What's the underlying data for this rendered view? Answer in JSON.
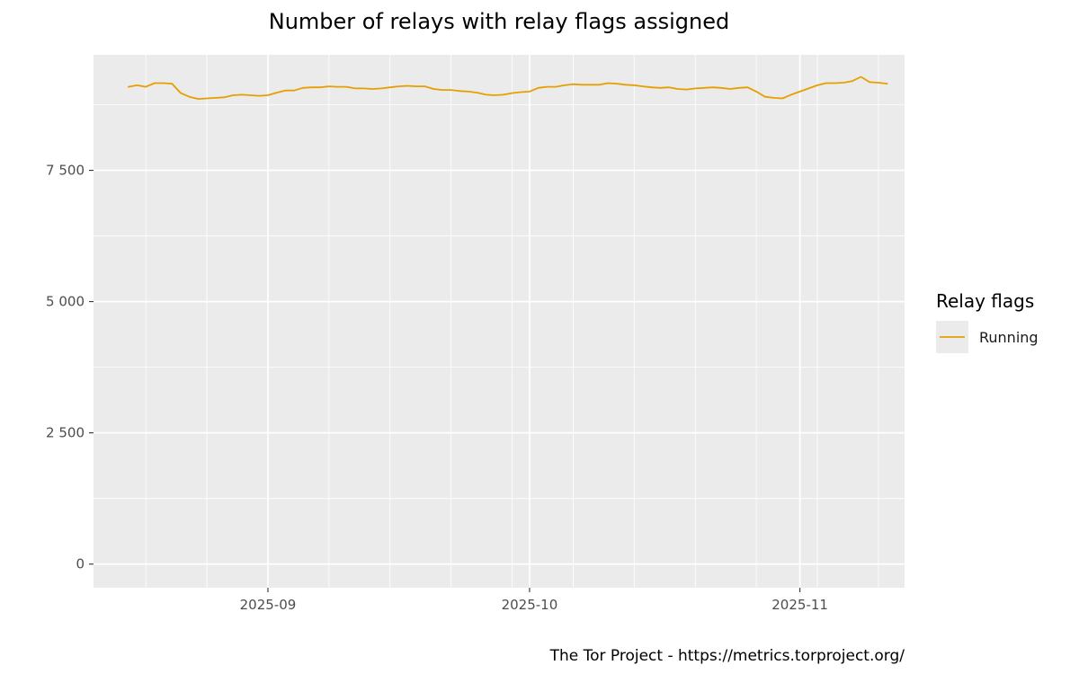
{
  "chart_data": {
    "type": "line",
    "title": "Number of relays with relay flags assigned",
    "xlabel": "",
    "ylabel": "",
    "caption": "The Tor Project - https://metrics.torproject.org/",
    "x_range": [
      "2025-08-12",
      "2025-11-13"
    ],
    "ylim": [
      -450,
      9700
    ],
    "y_ticks": [
      {
        "value": 0,
        "label": "0"
      },
      {
        "value": 2500,
        "label": "2 500"
      },
      {
        "value": 5000,
        "label": "5 000"
      },
      {
        "value": 7500,
        "label": "7 500"
      }
    ],
    "y_minor_ticks": [
      1250,
      3750,
      6250,
      8750
    ],
    "x_ticks": [
      {
        "date": "2025-09-01",
        "label": "2025-09"
      },
      {
        "date": "2025-10-01",
        "label": "2025-10"
      },
      {
        "date": "2025-11-01",
        "label": "2025-11"
      }
    ],
    "x_minor_ticks": [
      "2025-08-18",
      "2025-08-25",
      "2025-09-08",
      "2025-09-15",
      "2025-09-22",
      "2025-09-29",
      "2025-10-06",
      "2025-10-13",
      "2025-10-20",
      "2025-10-27",
      "2025-11-03",
      "2025-11-10"
    ],
    "grid": true,
    "legend": {
      "title": "Relay flags",
      "position": "right"
    },
    "series": [
      {
        "name": "Running",
        "color": "#E69F00",
        "points": [
          [
            "2025-08-16",
            9090
          ],
          [
            "2025-08-17",
            9120
          ],
          [
            "2025-08-18",
            9090
          ],
          [
            "2025-08-19",
            9160
          ],
          [
            "2025-08-20",
            9160
          ],
          [
            "2025-08-21",
            9150
          ],
          [
            "2025-08-22",
            8970
          ],
          [
            "2025-08-23",
            8900
          ],
          [
            "2025-08-24",
            8860
          ],
          [
            "2025-08-25",
            8870
          ],
          [
            "2025-08-26",
            8880
          ],
          [
            "2025-08-27",
            8890
          ],
          [
            "2025-08-28",
            8930
          ],
          [
            "2025-08-29",
            8940
          ],
          [
            "2025-08-30",
            8930
          ],
          [
            "2025-08-31",
            8920
          ],
          [
            "2025-09-01",
            8930
          ],
          [
            "2025-09-02",
            8980
          ],
          [
            "2025-09-03",
            9020
          ],
          [
            "2025-09-04",
            9020
          ],
          [
            "2025-09-05",
            9070
          ],
          [
            "2025-09-06",
            9080
          ],
          [
            "2025-09-07",
            9080
          ],
          [
            "2025-09-08",
            9100
          ],
          [
            "2025-09-09",
            9090
          ],
          [
            "2025-09-10",
            9090
          ],
          [
            "2025-09-11",
            9060
          ],
          [
            "2025-09-12",
            9060
          ],
          [
            "2025-09-13",
            9050
          ],
          [
            "2025-09-14",
            9060
          ],
          [
            "2025-09-15",
            9080
          ],
          [
            "2025-09-16",
            9100
          ],
          [
            "2025-09-17",
            9110
          ],
          [
            "2025-09-18",
            9100
          ],
          [
            "2025-09-19",
            9100
          ],
          [
            "2025-09-20",
            9050
          ],
          [
            "2025-09-21",
            9030
          ],
          [
            "2025-09-22",
            9030
          ],
          [
            "2025-09-23",
            9010
          ],
          [
            "2025-09-24",
            9000
          ],
          [
            "2025-09-25",
            8980
          ],
          [
            "2025-09-26",
            8940
          ],
          [
            "2025-09-27",
            8930
          ],
          [
            "2025-09-28",
            8940
          ],
          [
            "2025-09-29",
            8970
          ],
          [
            "2025-09-30",
            8990
          ],
          [
            "2025-10-01",
            9000
          ],
          [
            "2025-10-02",
            9070
          ],
          [
            "2025-10-03",
            9090
          ],
          [
            "2025-10-04",
            9090
          ],
          [
            "2025-10-05",
            9120
          ],
          [
            "2025-10-06",
            9140
          ],
          [
            "2025-10-07",
            9130
          ],
          [
            "2025-10-08",
            9130
          ],
          [
            "2025-10-09",
            9130
          ],
          [
            "2025-10-10",
            9160
          ],
          [
            "2025-10-11",
            9150
          ],
          [
            "2025-10-12",
            9130
          ],
          [
            "2025-10-13",
            9120
          ],
          [
            "2025-10-14",
            9100
          ],
          [
            "2025-10-15",
            9080
          ],
          [
            "2025-10-16",
            9070
          ],
          [
            "2025-10-17",
            9080
          ],
          [
            "2025-10-18",
            9050
          ],
          [
            "2025-10-19",
            9040
          ],
          [
            "2025-10-20",
            9060
          ],
          [
            "2025-10-21",
            9070
          ],
          [
            "2025-10-22",
            9080
          ],
          [
            "2025-10-23",
            9070
          ],
          [
            "2025-10-24",
            9050
          ],
          [
            "2025-10-25",
            9070
          ],
          [
            "2025-10-26",
            9080
          ],
          [
            "2025-10-27",
            9000
          ],
          [
            "2025-10-28",
            8900
          ],
          [
            "2025-10-29",
            8880
          ],
          [
            "2025-10-30",
            8870
          ],
          [
            "2025-10-31",
            8940
          ],
          [
            "2025-11-01",
            9000
          ],
          [
            "2025-11-02",
            9060
          ],
          [
            "2025-11-03",
            9120
          ],
          [
            "2025-11-04",
            9160
          ],
          [
            "2025-11-05",
            9160
          ],
          [
            "2025-11-06",
            9170
          ],
          [
            "2025-11-07",
            9200
          ],
          [
            "2025-11-08",
            9280
          ],
          [
            "2025-11-09",
            9180
          ],
          [
            "2025-11-10",
            9170
          ],
          [
            "2025-11-11",
            9150
          ]
        ]
      }
    ]
  }
}
